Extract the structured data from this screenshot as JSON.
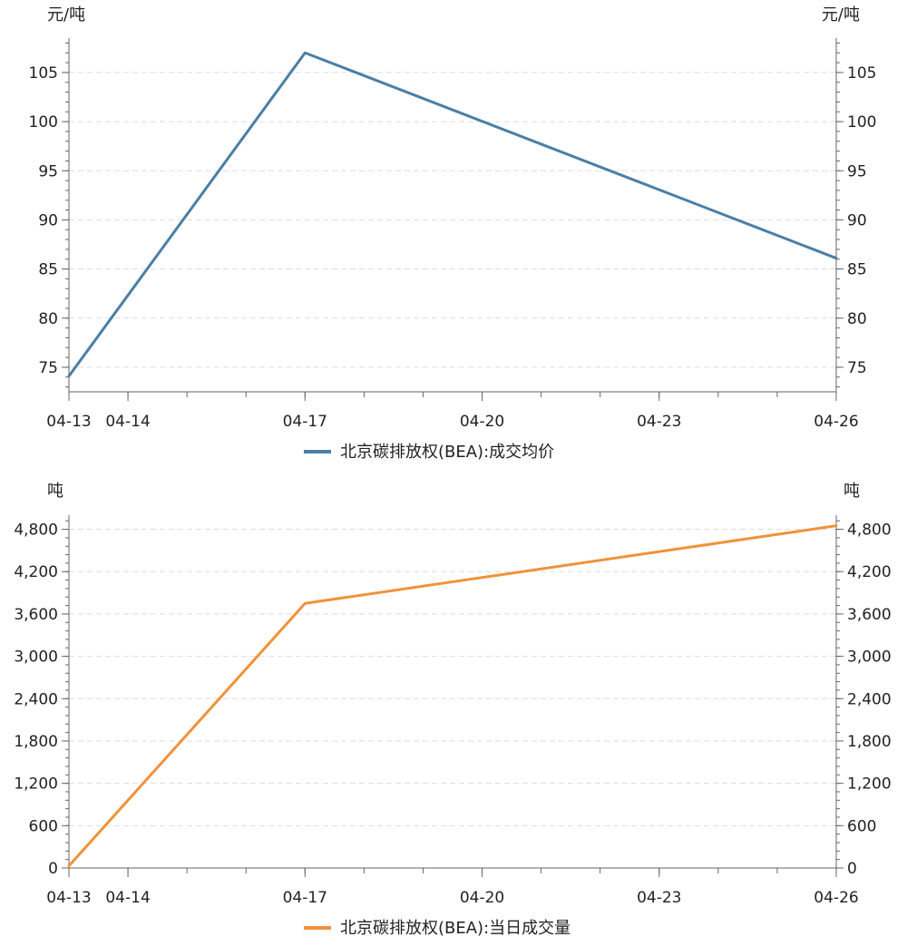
{
  "chart_data": [
    {
      "type": "line",
      "x": [
        "04-13",
        "04-17",
        "04-26"
      ],
      "x_ticks": [
        "04-13",
        "04-14",
        "04-17",
        "04-20",
        "04-23",
        "04-26"
      ],
      "series": [
        {
          "name": "北京碳排放权(BEA):成交均价",
          "color": "#4a7fa6",
          "values": [
            74.1,
            107,
            86.1
          ]
        }
      ],
      "y_ticks": [
        "75",
        "80",
        "85",
        "90",
        "95",
        "100",
        "105"
      ],
      "ylim": [
        72.5,
        108.5
      ],
      "ylabel_left": "元/吨",
      "ylabel_right": "元/吨",
      "grid": true,
      "legend": "bottom-center"
    },
    {
      "type": "line",
      "x": [
        "04-13",
        "04-17",
        "04-26"
      ],
      "x_ticks": [
        "04-13",
        "04-14",
        "04-17",
        "04-20",
        "04-23",
        "04-26"
      ],
      "series": [
        {
          "name": "北京碳排放权(BEA):当日成交量",
          "color": "#f0923a",
          "values": [
            30,
            3750,
            4850
          ]
        }
      ],
      "y_ticks": [
        "0",
        "600",
        "1,200",
        "1,800",
        "2,400",
        "3,000",
        "3,600",
        "4,200",
        "4,800"
      ],
      "ylim": [
        0,
        5000
      ],
      "ylabel_left": "吨",
      "ylabel_right": "吨",
      "grid": true,
      "legend": "bottom-center"
    }
  ]
}
